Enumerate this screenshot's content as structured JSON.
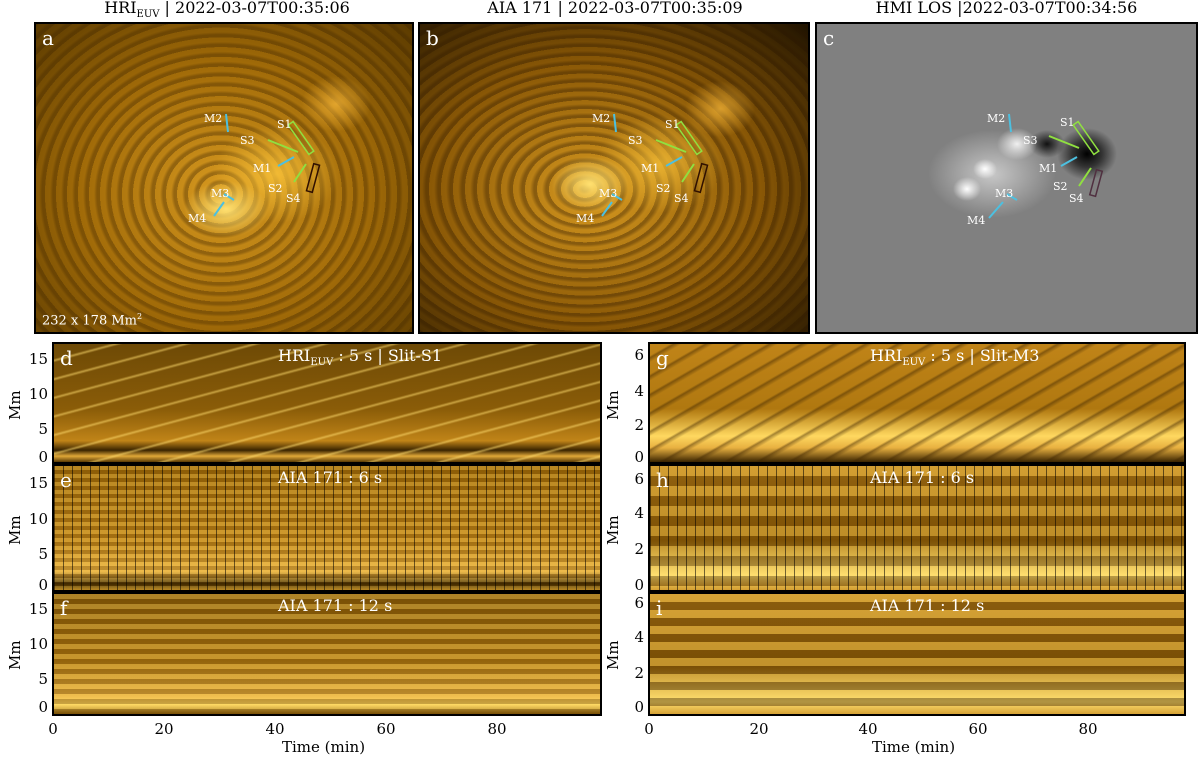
{
  "top_titles": {
    "a": {
      "main": "HRI",
      "sub": "EUV",
      "rest": " | 2022-03-07T00:35:06"
    },
    "b": "AIA 171  | 2022-03-07T00:35:09",
    "c": "HMI LOS  |2022-03-07T00:34:56"
  },
  "panel_letters": [
    "a",
    "b",
    "c",
    "d",
    "e",
    "f",
    "g",
    "h",
    "i"
  ],
  "scale_label": {
    "text": "232 x 178 Mm",
    "sup": "2"
  },
  "slit_labels": [
    "M1",
    "M2",
    "M3",
    "M4",
    "S1",
    "S2",
    "S3",
    "S4"
  ],
  "left_plots": {
    "d": {
      "main": "HRI",
      "sub": "EUV",
      "rest": " : 5 s  | Slit-S1"
    },
    "e": "AIA 171 : 6 s",
    "f": "AIA 171 : 12 s",
    "ylabel": "Mm",
    "yticks": [
      "15",
      "10",
      "5",
      "0"
    ],
    "xticks": [
      "0",
      "20",
      "40",
      "60",
      "80"
    ],
    "xlabel": "Time (min)"
  },
  "right_plots": {
    "g": {
      "main": "HRI",
      "sub": "EUV",
      "rest": " : 5 s  |  Slit-M3"
    },
    "h": "AIA 171 : 6 s",
    "i": "AIA 171 : 12 s",
    "ylabel": "Mm",
    "yticks": [
      "6",
      "4",
      "2",
      "0"
    ],
    "xticks": [
      "0",
      "20",
      "40",
      "60",
      "80"
    ],
    "xlabel": "Time (min)"
  },
  "colors": {
    "euv": "#c88a10",
    "euv_dark": "#2a1800",
    "euv_bright": "#ffd860",
    "slit_cyan": "#4cc0e0",
    "slit_green": "#90e040",
    "slit_dark": "#301000"
  }
}
